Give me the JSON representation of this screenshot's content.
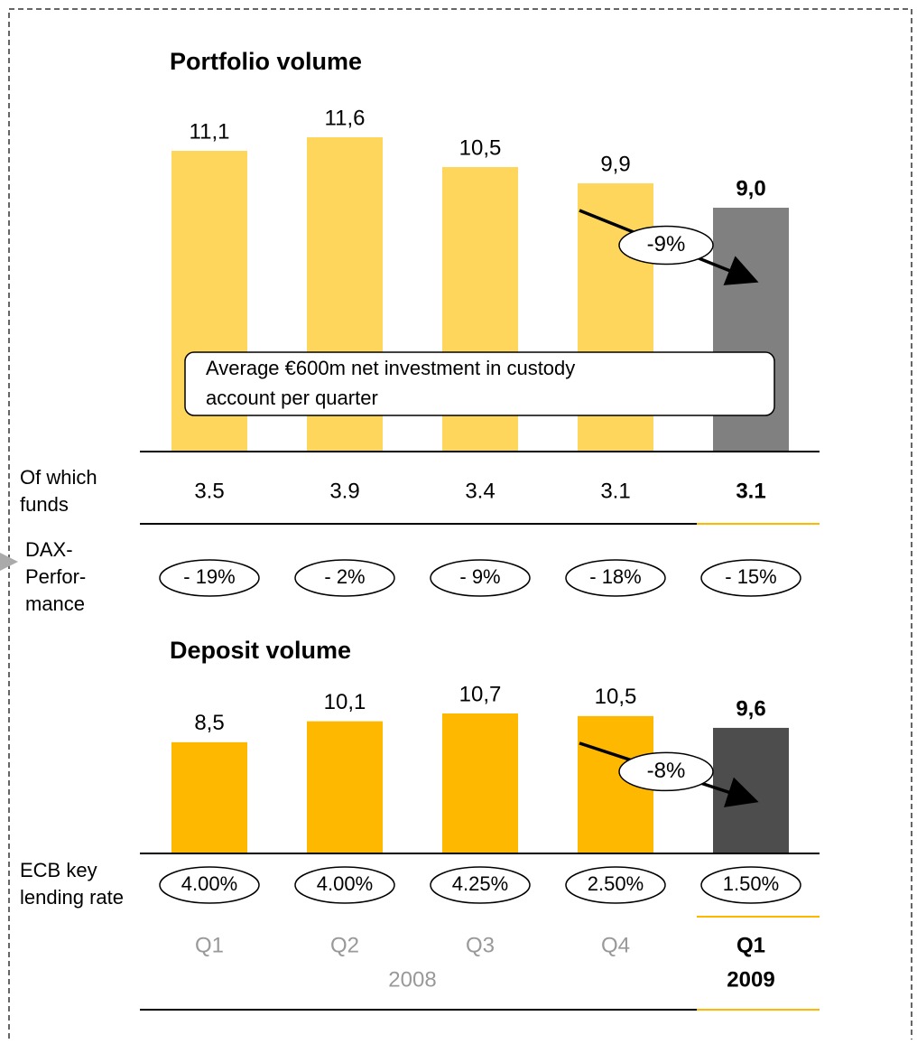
{
  "chart_data": [
    {
      "type": "bar",
      "title": "Portfolio volume",
      "values": [
        11.1,
        11.6,
        10.5,
        9.9,
        9.0
      ],
      "value_labels": [
        "11,1",
        "11,6",
        "10,5",
        "9,9",
        "9,0"
      ],
      "color": "#ffd65c",
      "highlight_color": "#808080",
      "annotation": "-9%",
      "note": [
        "Average €600m net investment in custody",
        "account per quarter"
      ]
    },
    {
      "type": "bar",
      "title": "Deposit volume",
      "categories": [
        "Q1",
        "Q2",
        "Q3",
        "Q4",
        "Q1"
      ],
      "year_labels": [
        "2008",
        "2009"
      ],
      "values": [
        8.5,
        10.1,
        10.7,
        10.5,
        9.6
      ],
      "value_labels": [
        "8,5",
        "10,1",
        "10,7",
        "10,5",
        "9,6"
      ],
      "color": "#ffb800",
      "highlight_color": "#4d4d4d",
      "annotation": "-8%"
    }
  ],
  "rows": [
    {
      "label": [
        "Of which",
        "funds"
      ],
      "values": [
        3.5,
        3.9,
        3.4,
        3.1,
        3.1
      ]
    },
    {
      "label": [
        "DAX-",
        "Perfor-",
        "mance"
      ],
      "values": [
        "- 19%",
        "- 2%",
        "- 9%",
        "- 18%",
        "- 15%"
      ]
    },
    {
      "label": [
        "ECB key",
        "lending rate"
      ],
      "values": [
        "4.00%",
        "4.00%",
        "4.25%",
        "2.50%",
        "1.50%"
      ]
    }
  ]
}
